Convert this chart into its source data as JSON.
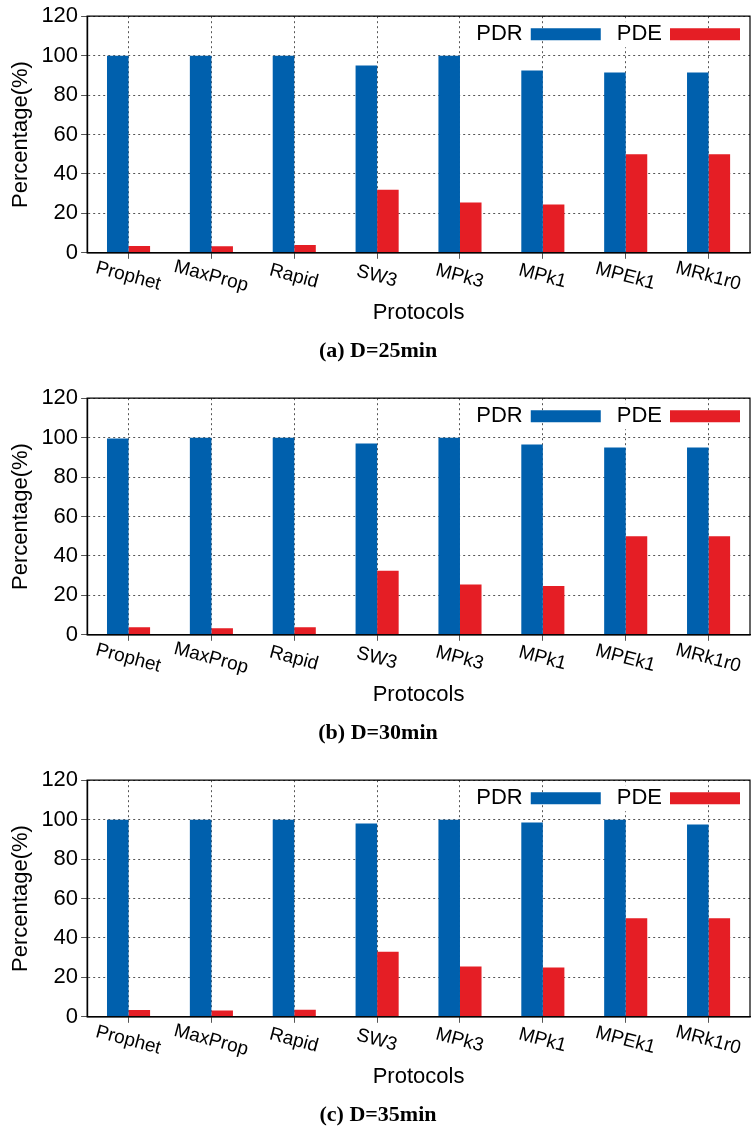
{
  "chart_data": [
    {
      "type": "bar",
      "title": "(a) D=25min",
      "xlabel": "Protocols",
      "ylabel": "Percentage(%)",
      "categories": [
        "Prophet",
        "MaxProp",
        "Rapid",
        "SW3",
        "MPk3",
        "MPk1",
        "MPEk1",
        "MRk1r0"
      ],
      "series": [
        {
          "name": "PDR",
          "color": "#0060ad",
          "values": [
            100,
            100,
            100,
            95,
            100,
            92.5,
            91.5,
            91.5
          ]
        },
        {
          "name": "PDE",
          "color": "#e51e25",
          "values": [
            3.5,
            3.3,
            4,
            32,
            25.5,
            24.5,
            50,
            50
          ]
        }
      ],
      "ylim": [
        0,
        120
      ],
      "yticks": [
        0,
        20,
        40,
        60,
        80,
        100,
        120
      ],
      "grid": true,
      "legend": "top right"
    },
    {
      "type": "bar",
      "title": "(b) D=30min",
      "xlabel": "Protocols",
      "ylabel": "Percentage(%)",
      "categories": [
        "Prophet",
        "MaxProp",
        "Rapid",
        "SW3",
        "MPk3",
        "MPk1",
        "MPEk1",
        "MRk1r0"
      ],
      "series": [
        {
          "name": "PDR",
          "color": "#0060ad",
          "values": [
            99.5,
            100,
            100,
            97,
            100,
            96.5,
            95,
            95
          ]
        },
        {
          "name": "PDE",
          "color": "#e51e25",
          "values": [
            3.8,
            3.3,
            3.8,
            32.5,
            25.5,
            24.8,
            50,
            50
          ]
        }
      ],
      "ylim": [
        0,
        120
      ],
      "yticks": [
        0,
        20,
        40,
        60,
        80,
        100,
        120
      ],
      "grid": true,
      "legend": "top right"
    },
    {
      "type": "bar",
      "title": "(c) D=35min",
      "xlabel": "Protocols",
      "ylabel": "Percentage(%)",
      "categories": [
        "Prophet",
        "MaxProp",
        "Rapid",
        "SW3",
        "MPk3",
        "MPk1",
        "MPEk1",
        "MRk1r0"
      ],
      "series": [
        {
          "name": "PDR",
          "color": "#0060ad",
          "values": [
            100,
            100,
            100,
            98,
            100,
            98.5,
            100,
            97.5
          ]
        },
        {
          "name": "PDE",
          "color": "#e51e25",
          "values": [
            3.5,
            3.2,
            3.6,
            33,
            25.5,
            25,
            50,
            50
          ]
        }
      ],
      "ylim": [
        0,
        120
      ],
      "yticks": [
        0,
        20,
        40,
        60,
        80,
        100,
        120
      ],
      "grid": true,
      "legend": "top right"
    }
  ]
}
